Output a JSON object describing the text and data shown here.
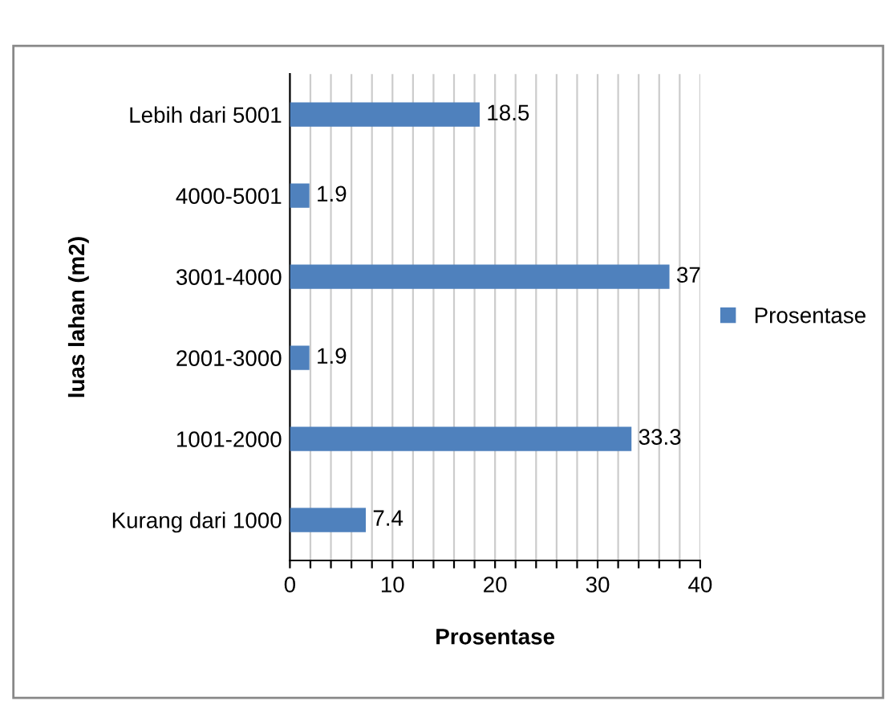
{
  "chart_data": {
    "type": "bar",
    "orientation": "horizontal",
    "xlabel": "Prosentase",
    "ylabel": "luas lahan (m2)",
    "categories": [
      "Lebih dari 5001",
      "4000-5001",
      "3001-4000",
      "2001-3000",
      "1001-2000",
      "Kurang dari 1000"
    ],
    "series": [
      {
        "name": "Prosentase",
        "color": "#4f81bd",
        "values": [
          18.5,
          1.9,
          37,
          1.9,
          33.3,
          7.4
        ]
      }
    ],
    "xlim": [
      0,
      40
    ],
    "xticks": [
      0,
      {
        "value": 2,
        "label": null
      },
      {
        "value": 4,
        "label": null
      },
      {
        "value": 6,
        "label": null
      },
      {
        "value": 8,
        "label": null
      },
      10,
      {
        "value": 12,
        "label": null
      },
      {
        "value": 14,
        "label": null
      },
      {
        "value": 16,
        "label": null
      },
      {
        "value": 18,
        "label": null
      },
      20,
      {
        "value": 22,
        "label": null
      },
      {
        "value": 24,
        "label": null
      },
      {
        "value": 26,
        "label": null
      },
      {
        "value": 28,
        "label": null
      },
      30,
      {
        "value": 32,
        "label": null
      },
      {
        "value": 34,
        "label": null
      },
      {
        "value": 36,
        "label": null
      },
      {
        "value": 38,
        "label": null
      },
      40
    ],
    "grid": "x",
    "legend": "right",
    "data_labels": true
  }
}
